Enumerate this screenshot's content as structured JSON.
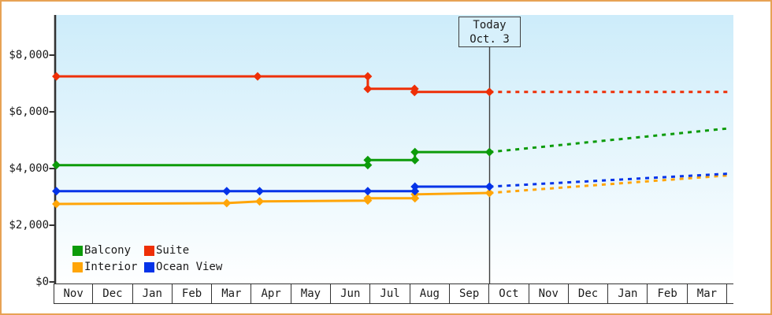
{
  "frame": {
    "border_color": "#e7a254"
  },
  "today_box": {
    "line1": "Today",
    "line2": "Oct. 3"
  },
  "legend": {
    "items": [
      {
        "label": "Balcony",
        "color": "#0c9b0a"
      },
      {
        "label": "Suite",
        "color": "#ee2f07"
      },
      {
        "label": "Interior",
        "color": "#ffa508"
      },
      {
        "label": "Ocean View",
        "color": "#0433e8"
      }
    ]
  },
  "chart_data": {
    "type": "line",
    "description": "Stepped price-history lines (solid = past, dashed = forecast) for four cruise cabin categories; vertical marker labeled Today Oct. 3 separates history from forecast.",
    "y_axis": {
      "tick_labels": [
        "$0",
        "$2,000",
        "$4,000",
        "$6,000",
        "$8,000"
      ],
      "tick_values": [
        0,
        2000,
        4000,
        6000,
        8000
      ],
      "ylim": [
        0,
        9400
      ],
      "grid": false
    },
    "x_axis": {
      "months": [
        "Nov",
        "Dec",
        "Jan",
        "Feb",
        "Mar",
        "Apr",
        "May",
        "Jun",
        "Jul",
        "Aug",
        "Sep",
        "Oct",
        "Nov",
        "Dec",
        "Jan",
        "Feb",
        "Mar"
      ],
      "today_boundary_month_index": 11
    },
    "today": {
      "label": "Today",
      "date": "Oct. 3"
    },
    "plot_background": {
      "top_color": "#cdecfa",
      "bottom_color": "#feffff"
    },
    "series": [
      {
        "name": "Suite",
        "color": "#ee2f07",
        "solid_points_month_value": [
          [
            0.07,
            7250
          ],
          [
            5.15,
            7250
          ],
          [
            7.93,
            7250
          ],
          [
            7.93,
            6810
          ],
          [
            9.11,
            6810
          ],
          [
            9.11,
            6700
          ],
          [
            11,
            6700
          ]
        ],
        "marker_points_month_value": [
          [
            0.07,
            7250
          ],
          [
            5.15,
            7250
          ],
          [
            7.93,
            7250
          ],
          [
            7.93,
            6810
          ],
          [
            9.11,
            6810
          ],
          [
            9.11,
            6700
          ],
          [
            11,
            6700
          ]
        ],
        "forecast_points_month_value": [
          [
            11,
            6700
          ],
          [
            17.06,
            6700
          ]
        ]
      },
      {
        "name": "Balcony",
        "color": "#0c9b0a",
        "solid_points_month_value": [
          [
            0.07,
            4120
          ],
          [
            7.93,
            4120
          ],
          [
            7.93,
            4300
          ],
          [
            9.12,
            4300
          ],
          [
            9.12,
            4580
          ],
          [
            11,
            4580
          ]
        ],
        "marker_points_month_value": [
          [
            0.07,
            4120
          ],
          [
            7.93,
            4120
          ],
          [
            7.93,
            4300
          ],
          [
            9.12,
            4300
          ],
          [
            9.12,
            4580
          ],
          [
            11,
            4580
          ]
        ],
        "forecast_points_month_value": [
          [
            11,
            4580
          ],
          [
            17.06,
            5420
          ]
        ]
      },
      {
        "name": "Interior",
        "color": "#ffa508",
        "solid_points_month_value": [
          [
            0.07,
            2750
          ],
          [
            4.37,
            2780
          ],
          [
            5.2,
            2840
          ],
          [
            7.93,
            2870
          ],
          [
            7.93,
            2950
          ],
          [
            9.12,
            2950
          ],
          [
            9.12,
            3090
          ],
          [
            11,
            3140
          ]
        ],
        "marker_points_month_value": [
          [
            0.07,
            2750
          ],
          [
            4.37,
            2780
          ],
          [
            5.2,
            2840
          ],
          [
            7.93,
            2870
          ],
          [
            7.93,
            2950
          ],
          [
            9.12,
            2950
          ],
          [
            9.12,
            3090
          ],
          [
            11,
            3140
          ]
        ],
        "forecast_points_month_value": [
          [
            11,
            3140
          ],
          [
            17.06,
            3760
          ]
        ]
      },
      {
        "name": "Ocean View",
        "color": "#0433e8",
        "solid_points_month_value": [
          [
            0.07,
            3200
          ],
          [
            4.37,
            3200
          ],
          [
            5.2,
            3200
          ],
          [
            7.93,
            3200
          ],
          [
            9.12,
            3200
          ],
          [
            9.12,
            3360
          ],
          [
            11,
            3360
          ]
        ],
        "marker_points_month_value": [
          [
            0.07,
            3200
          ],
          [
            4.37,
            3200
          ],
          [
            5.2,
            3200
          ],
          [
            7.93,
            3200
          ],
          [
            9.12,
            3200
          ],
          [
            9.12,
            3360
          ],
          [
            11,
            3360
          ]
        ],
        "forecast_points_month_value": [
          [
            11,
            3360
          ],
          [
            17.06,
            3820
          ]
        ]
      }
    ]
  }
}
